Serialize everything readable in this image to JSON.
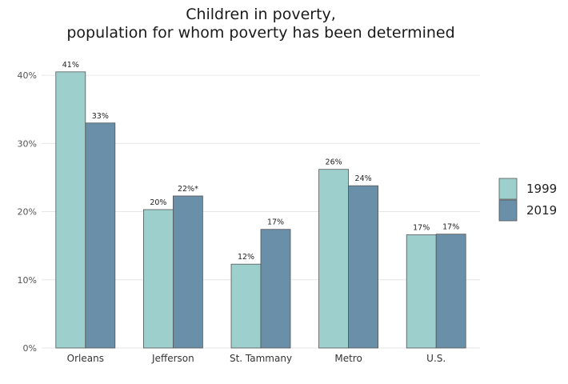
{
  "chart_data": {
    "type": "bar",
    "title": [
      "Children in poverty,",
      "population for whom poverty has been determined"
    ],
    "xlabel": "",
    "ylabel": "",
    "categories": [
      "Orleans",
      "Jefferson",
      "St. Tammany",
      "Metro",
      "U.S."
    ],
    "series": [
      {
        "name": "1999",
        "color": "#9dd0cc",
        "values": [
          40.5,
          20.3,
          12.3,
          26.2,
          16.6
        ],
        "labels": [
          "41%",
          "20%",
          "12%",
          "26%",
          "17%"
        ]
      },
      {
        "name": "2019",
        "color": "#6a8fa8",
        "values": [
          33.0,
          22.3,
          17.4,
          23.8,
          16.7
        ],
        "labels": [
          "33%",
          "22%*",
          "17%",
          "24%",
          "17%"
        ]
      }
    ],
    "ylim": [
      0,
      44
    ],
    "yticks": [
      0,
      10,
      20,
      30,
      40
    ],
    "ytick_labels": [
      "0%",
      "10%",
      "20%",
      "30%",
      "40%"
    ],
    "grid": true,
    "legend_position": "right"
  }
}
